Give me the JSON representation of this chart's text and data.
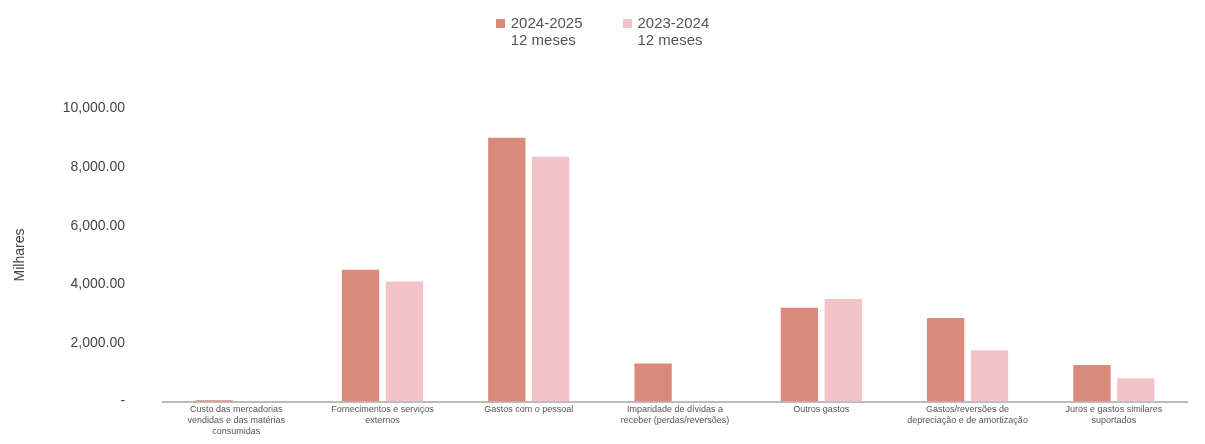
{
  "chart_data": {
    "type": "bar",
    "ylabel": "Milhares",
    "categories": [
      "Custo das mercadorias vendidas e das matérias consumidas",
      "Fornecimentos e serviços externos",
      "Gastos com o pessoal",
      "Imparidade de dívidas a receber (perdas/reversões)",
      "Outros gastos",
      "Gastos/reversões de depreciação e de amortização",
      "Juros e gastos similares suportados"
    ],
    "series": [
      {
        "name": "2024-2025\n12 meses",
        "color": "#d98a7a",
        "values": [
          50,
          4500,
          9000,
          1300,
          3200,
          2850,
          1250
        ]
      },
      {
        "name": "2023-2024\n12 meses",
        "color": "#f2c4c8",
        "values": [
          null,
          4100,
          8350,
          0,
          3500,
          1750,
          800
        ]
      }
    ],
    "ylim": [
      0,
      10000
    ],
    "yticks": [
      {
        "value": 0,
        "label": "-"
      },
      {
        "value": 2000,
        "label": "2,000.00"
      },
      {
        "value": 4000,
        "label": "4,000.00"
      },
      {
        "value": 6000,
        "label": "6,000.00"
      },
      {
        "value": 8000,
        "label": "8,000.00"
      },
      {
        "value": 10000,
        "label": "10,000.00"
      }
    ],
    "grid": false,
    "legend": "top"
  }
}
